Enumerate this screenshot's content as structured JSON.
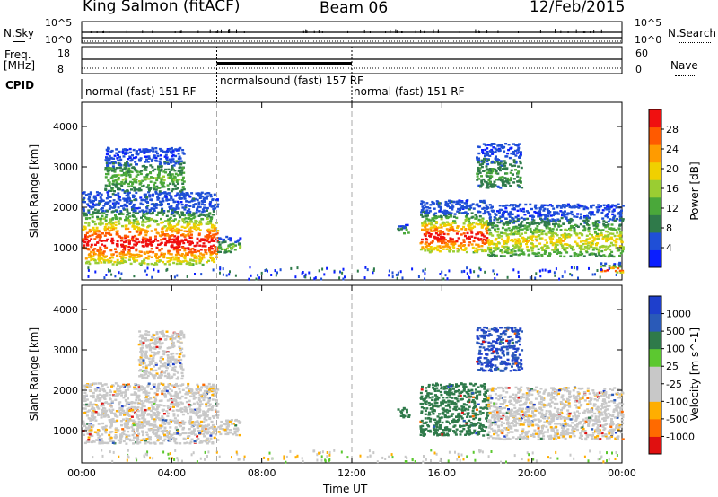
{
  "header": {
    "station": "King Salmon (fitACF)",
    "beam": "Beam 06",
    "date": "12/Feb/2015"
  },
  "top_panels": {
    "nsky_label": "N.Sky",
    "nsearch_label": "N.Search",
    "nsky_ticks": [
      "10^5",
      "10^0"
    ],
    "nsearch_ticks": [
      "10^5",
      "10^0"
    ],
    "freq_label": "Freq.",
    "freq_unit": "[MHz]",
    "freq_ticks": [
      "18",
      "8"
    ],
    "nave_label": "Nave",
    "nave_ticks": [
      "60",
      "0"
    ],
    "cpid_label": "CPID",
    "cpid_segments": [
      {
        "label": "normal (fast) 151 RF",
        "start_hour": 0,
        "end_hour": 6
      },
      {
        "label": "normalsound (fast) 157 RF",
        "start_hour": 6,
        "end_hour": 12
      },
      {
        "label": "normal (fast) 151 RF",
        "start_hour": 12,
        "end_hour": 24
      }
    ]
  },
  "colors": {
    "power_scale": [
      "#0a1eff",
      "#1f4fd6",
      "#2f7a4a",
      "#4aa83a",
      "#9acd32",
      "#f0d000",
      "#ff9b00",
      "#ff5a00",
      "#f01010"
    ],
    "velocity_scale": [
      "#1e3fcc",
      "#2a5ab8",
      "#2f7a4a",
      "#5cc830",
      "#c8c8c8",
      "#c8c8c8",
      "#ffae00",
      "#ff6a00",
      "#e01010"
    ]
  },
  "chart_data": [
    {
      "type": "heatmap",
      "title": "",
      "xlabel": "Time UT",
      "ylabel": "Slant Range [km]",
      "x_ticks": [
        "00:00",
        "04:00",
        "08:00",
        "12:00",
        "16:00",
        "20:00",
        "00:00"
      ],
      "xlim_hours": [
        0,
        24
      ],
      "y_ticks": [
        1000,
        2000,
        3000,
        4000
      ],
      "ylim": [
        200,
        4600
      ],
      "colorbar_label": "Power [dB]",
      "colorbar_ticks": [
        4,
        8,
        12,
        16,
        20,
        24,
        28
      ],
      "vertical_markers_hours": [
        6,
        12
      ],
      "echo_regions": [
        {
          "t_start": 0.0,
          "t_end": 6.0,
          "range_low": 600,
          "range_high": 2400,
          "peak_db": 28
        },
        {
          "t_start": 1.0,
          "t_end": 4.5,
          "range_low": 2400,
          "range_high": 3500,
          "peak_db": 10
        },
        {
          "t_start": 6.0,
          "t_end": 7.0,
          "range_low": 900,
          "range_high": 1300,
          "peak_db": 12
        },
        {
          "t_start": 14.0,
          "t_end": 14.5,
          "range_low": 1350,
          "range_high": 1600,
          "peak_db": 10
        },
        {
          "t_start": 15.0,
          "t_end": 18.0,
          "range_low": 900,
          "range_high": 2200,
          "peak_db": 28
        },
        {
          "t_start": 18.0,
          "t_end": 24.0,
          "range_low": 800,
          "range_high": 2100,
          "peak_db": 16
        },
        {
          "t_start": 17.5,
          "t_end": 19.5,
          "range_low": 2500,
          "range_high": 3600,
          "peak_db": 8
        },
        {
          "t_start": 23.0,
          "t_end": 24.0,
          "range_low": 400,
          "range_high": 650,
          "peak_db": 28
        }
      ]
    },
    {
      "type": "heatmap",
      "title": "",
      "xlabel": "Time UT",
      "ylabel": "Slant Range [km]",
      "x_ticks": [
        "00:00",
        "04:00",
        "08:00",
        "12:00",
        "16:00",
        "20:00",
        "00:00"
      ],
      "xlim_hours": [
        0,
        24
      ],
      "y_ticks": [
        1000,
        2000,
        3000,
        4000
      ],
      "ylim": [
        200,
        4600
      ],
      "colorbar_label": "Velocity [m s^-1]",
      "colorbar_ticks": [
        1000,
        500,
        100,
        25,
        -25,
        -100,
        -500,
        -1000
      ],
      "vertical_markers_hours": [
        6,
        12
      ],
      "echo_regions": [
        {
          "t_start": 0.0,
          "t_end": 6.0,
          "range_low": 700,
          "range_high": 2200,
          "velocity": 0
        },
        {
          "t_start": 2.5,
          "t_end": 4.5,
          "range_low": 2300,
          "range_high": 3500,
          "velocity": 0
        },
        {
          "t_start": 6.0,
          "t_end": 7.0,
          "range_low": 900,
          "range_high": 1300,
          "velocity": 0
        },
        {
          "t_start": 14.0,
          "t_end": 14.5,
          "range_low": 1350,
          "range_high": 1600,
          "velocity": 300
        },
        {
          "t_start": 15.0,
          "t_end": 18.0,
          "range_low": 900,
          "range_high": 2200,
          "velocity": 300
        },
        {
          "t_start": 18.0,
          "t_end": 24.0,
          "range_low": 800,
          "range_high": 2100,
          "velocity": 0
        },
        {
          "t_start": 17.5,
          "t_end": 19.5,
          "range_low": 2500,
          "range_high": 3600,
          "velocity": 800
        }
      ]
    }
  ]
}
